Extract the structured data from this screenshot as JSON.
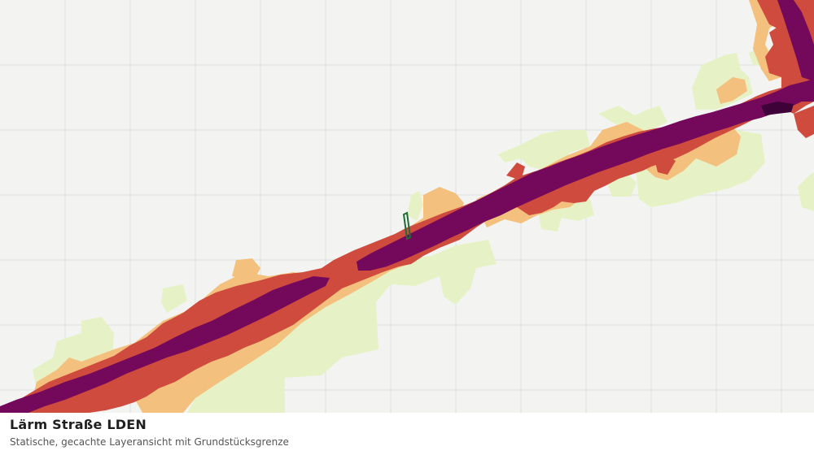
{
  "caption": {
    "title": "Lärm Straße LDEN",
    "subtitle": "Statische, gecachte Layeransicht mit Grundstücksgrenze"
  },
  "map": {
    "background_color": "#f3f4f2",
    "grid_color": "#dedfdd",
    "noise_classes": [
      {
        "name": "noise-level-1",
        "color": "#e6f2c6"
      },
      {
        "name": "noise-level-2",
        "color": "#f3c07e"
      },
      {
        "name": "noise-level-3",
        "color": "#cf4b3e"
      },
      {
        "name": "noise-level-4",
        "color": "#74095c"
      },
      {
        "name": "noise-level-5",
        "color": "#3e0238"
      }
    ],
    "parcel_boundary_color": "#1e6b35"
  }
}
